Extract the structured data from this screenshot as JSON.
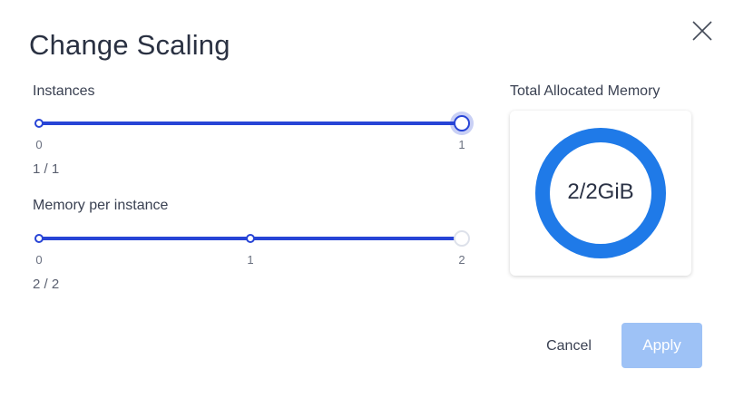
{
  "dialog": {
    "title": "Change Scaling",
    "close_icon": "close-icon"
  },
  "instances": {
    "label": "Instances",
    "min": 0,
    "max": 1,
    "value": 1,
    "ticks": [
      "0",
      "1"
    ],
    "value_text": "1 / 1"
  },
  "memory": {
    "label": "Memory per instance",
    "min": 0,
    "max": 2,
    "value": 2,
    "ticks": [
      "0",
      "1",
      "2"
    ],
    "value_text": "2 / 2"
  },
  "total_memory": {
    "title": "Total Allocated Memory",
    "text": "2/2GiB",
    "used_fraction": 1.0,
    "ring_color": "#1f7ae8"
  },
  "actions": {
    "cancel_label": "Cancel",
    "apply_label": "Apply"
  },
  "colors": {
    "accent": "#2744d6",
    "apply_disabled": "#9ec2f6"
  }
}
